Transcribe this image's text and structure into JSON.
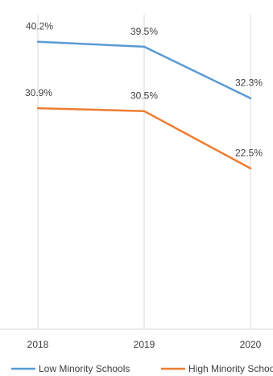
{
  "chart_data": {
    "type": "line",
    "categories": [
      "2018",
      "2019",
      "2020"
    ],
    "series": [
      {
        "name": "Low Minority Schools",
        "values": [
          40.2,
          39.5,
          32.3
        ],
        "labels": [
          "40.2%",
          "39.5%",
          "32.3%"
        ],
        "color": "#5b9bd5"
      },
      {
        "name": "High Minority Schools",
        "values": [
          30.9,
          30.5,
          22.5
        ],
        "labels": [
          "30.9%",
          "30.5%",
          "22.5%"
        ],
        "color": "#ed7d31"
      }
    ],
    "ylim": [
      0,
      44
    ],
    "grid": "vertical",
    "legend": "bottom",
    "title": "",
    "xlabel": "",
    "ylabel": ""
  }
}
